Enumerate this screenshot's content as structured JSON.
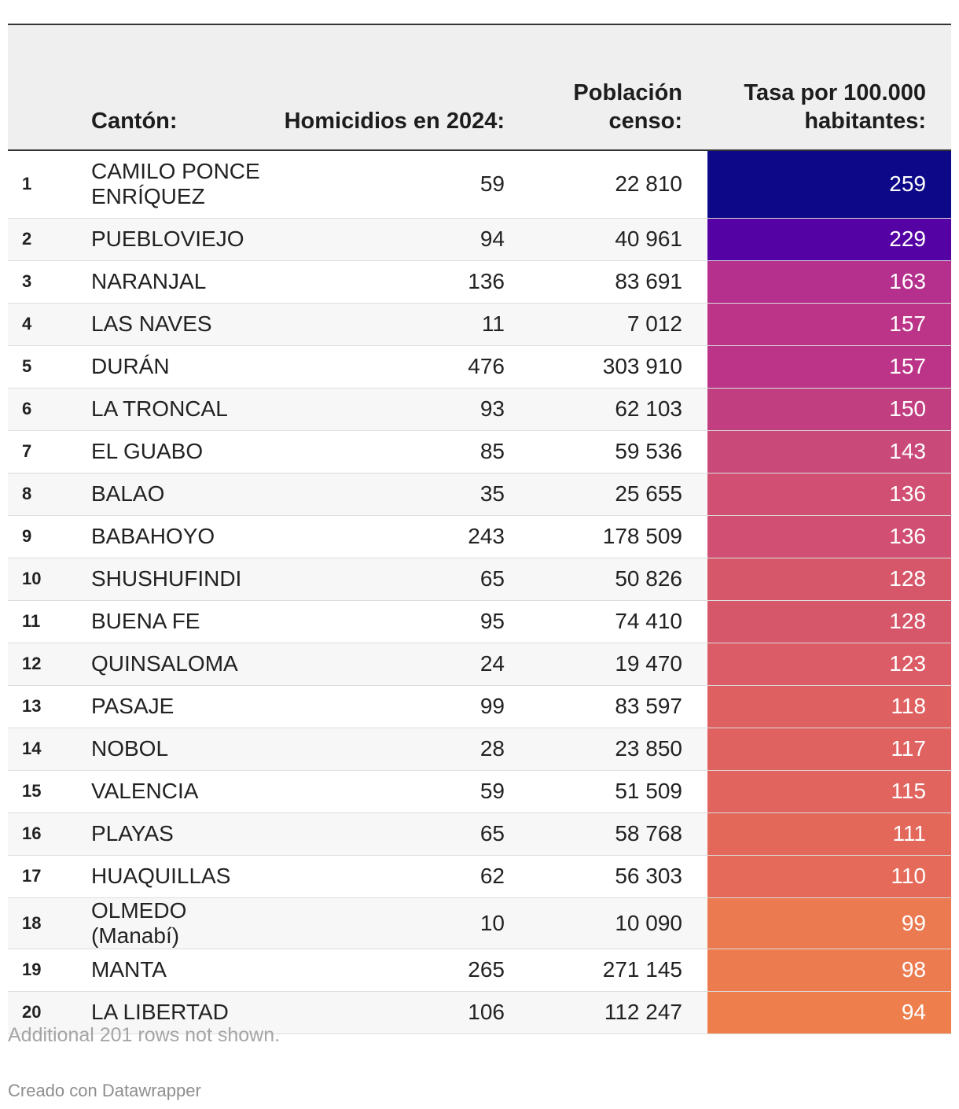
{
  "chart_data": {
    "type": "table",
    "columns": [
      "",
      "Cantón:",
      "Homicidios en 2024:",
      "Población censo:",
      "Tasa por 100.000 habitantes:"
    ],
    "rows": [
      {
        "rank": "1",
        "canton": "CAMILO PONCE ENRÍQUEZ",
        "homicidios": "59",
        "poblacion": "22 810",
        "tasa": "259",
        "color": "#0d0887"
      },
      {
        "rank": "2",
        "canton": "PUEBLOVIEJO",
        "homicidios": "94",
        "poblacion": "40 961",
        "tasa": "229",
        "color": "#5402a3"
      },
      {
        "rank": "3",
        "canton": "NARANJAL",
        "homicidios": "136",
        "poblacion": "83 691",
        "tasa": "163",
        "color": "#b52f8c"
      },
      {
        "rank": "4",
        "canton": "LAS NAVES",
        "homicidios": "11",
        "poblacion": "7 012",
        "tasa": "157",
        "color": "#bb3488"
      },
      {
        "rank": "5",
        "canton": "DURÁN",
        "homicidios": "476",
        "poblacion": "303 910",
        "tasa": "157",
        "color": "#bb3488"
      },
      {
        "rank": "6",
        "canton": "LA TRONCAL",
        "homicidios": "93",
        "poblacion": "62 103",
        "tasa": "150",
        "color": "#c13f80"
      },
      {
        "rank": "7",
        "canton": "EL GUABO",
        "homicidios": "85",
        "poblacion": "59 536",
        "tasa": "143",
        "color": "#c94a78"
      },
      {
        "rank": "8",
        "canton": "BALAO",
        "homicidios": "35",
        "poblacion": "25 655",
        "tasa": "136",
        "color": "#d04f72"
      },
      {
        "rank": "9",
        "canton": "BABAHOYO",
        "homicidios": "243",
        "poblacion": "178 509",
        "tasa": "136",
        "color": "#d04f72"
      },
      {
        "rank": "10",
        "canton": "SHUSHUFINDI",
        "homicidios": "65",
        "poblacion": "50 826",
        "tasa": "128",
        "color": "#d6566a"
      },
      {
        "rank": "11",
        "canton": "BUENA FE",
        "homicidios": "95",
        "poblacion": "74 410",
        "tasa": "128",
        "color": "#d6566a"
      },
      {
        "rank": "12",
        "canton": "QUINSALOMA",
        "homicidios": "24",
        "poblacion": "19 470",
        "tasa": "123",
        "color": "#db5c66"
      },
      {
        "rank": "13",
        "canton": "PASAJE",
        "homicidios": "99",
        "poblacion": "83 597",
        "tasa": "118",
        "color": "#df6061"
      },
      {
        "rank": "14",
        "canton": "NOBOL",
        "homicidios": "28",
        "poblacion": "23 850",
        "tasa": "117",
        "color": "#df6160"
      },
      {
        "rank": "15",
        "canton": "VALENCIA",
        "homicidios": "59",
        "poblacion": "51 509",
        "tasa": "115",
        "color": "#e1645e"
      },
      {
        "rank": "16",
        "canton": "PLAYAS",
        "homicidios": "65",
        "poblacion": "58 768",
        "tasa": "111",
        "color": "#e4685a"
      },
      {
        "rank": "17",
        "canton": "HUAQUILLAS",
        "homicidios": "62",
        "poblacion": "56 303",
        "tasa": "110",
        "color": "#e56a59"
      },
      {
        "rank": "18",
        "canton": "OLMEDO (Manabí)",
        "homicidios": "10",
        "poblacion": "10 090",
        "tasa": "99",
        "color": "#ec7a50"
      },
      {
        "rank": "19",
        "canton": "MANTA",
        "homicidios": "265",
        "poblacion": "271 145",
        "tasa": "98",
        "color": "#ec7b50"
      },
      {
        "rank": "20",
        "canton": "LA LIBERTAD",
        "homicidios": "106",
        "poblacion": "112 247",
        "tasa": "94",
        "color": "#ee7f4d"
      }
    ]
  },
  "footer": {
    "rows_note": "Additional 201 rows not shown.",
    "credit": "Creado con Datawrapper"
  }
}
